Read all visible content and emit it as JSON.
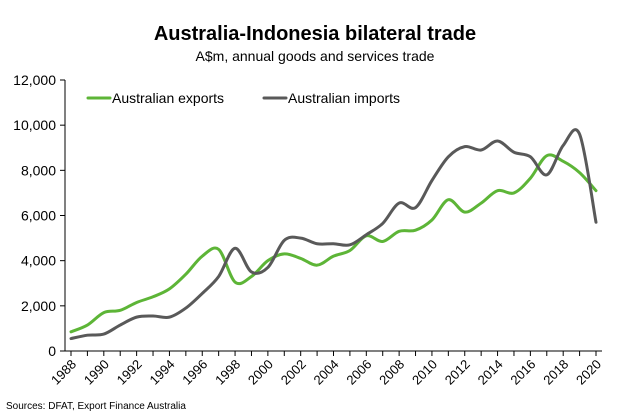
{
  "chart_data": {
    "type": "line",
    "title": "Australia-Indonesia bilateral trade",
    "subtitle": "A$m, annual goods and services trade",
    "xlabel": "",
    "ylabel": "",
    "source": "Sources: DFAT, Export Finance Australia",
    "x": [
      1988,
      1989,
      1990,
      1991,
      1992,
      1993,
      1994,
      1995,
      1996,
      1997,
      1998,
      1999,
      2000,
      2001,
      2002,
      2003,
      2004,
      2005,
      2006,
      2007,
      2008,
      2009,
      2010,
      2011,
      2012,
      2013,
      2014,
      2015,
      2016,
      2017,
      2018,
      2019,
      2020
    ],
    "xticks": [
      "1988",
      "1990",
      "1992",
      "1994",
      "1996",
      "1998",
      "2000",
      "2002",
      "2004",
      "2006",
      "2008",
      "2010",
      "2012",
      "2014",
      "2016",
      "2018",
      "2020"
    ],
    "xlim": [
      1988,
      2020
    ],
    "ylim": [
      0,
      12000
    ],
    "yticks": [
      "0",
      "2,000",
      "4,000",
      "6,000",
      "8,000",
      "10,000",
      "12,000"
    ],
    "ytick_values": [
      0,
      2000,
      4000,
      6000,
      8000,
      10000,
      12000
    ],
    "grid": false,
    "legend_position": "top-left",
    "series": [
      {
        "name": "Australian exports",
        "color": "#5DB537",
        "values": [
          850,
          1150,
          1700,
          1800,
          2150,
          2400,
          2750,
          3400,
          4200,
          4500,
          3050,
          3300,
          4000,
          4300,
          4100,
          3800,
          4200,
          4450,
          5100,
          4850,
          5300,
          5350,
          5800,
          6700,
          6150,
          6550,
          7100,
          7000,
          7650,
          8650,
          8400,
          7900,
          7100
        ]
      },
      {
        "name": "Australian imports",
        "color": "#595959",
        "values": [
          550,
          700,
          750,
          1150,
          1500,
          1550,
          1500,
          1900,
          2550,
          3300,
          4550,
          3500,
          3700,
          4900,
          5000,
          4750,
          4750,
          4700,
          5150,
          5650,
          6550,
          6350,
          7550,
          8600,
          9050,
          8900,
          9300,
          8800,
          8600,
          7800,
          9100,
          9600,
          5700
        ]
      }
    ]
  }
}
